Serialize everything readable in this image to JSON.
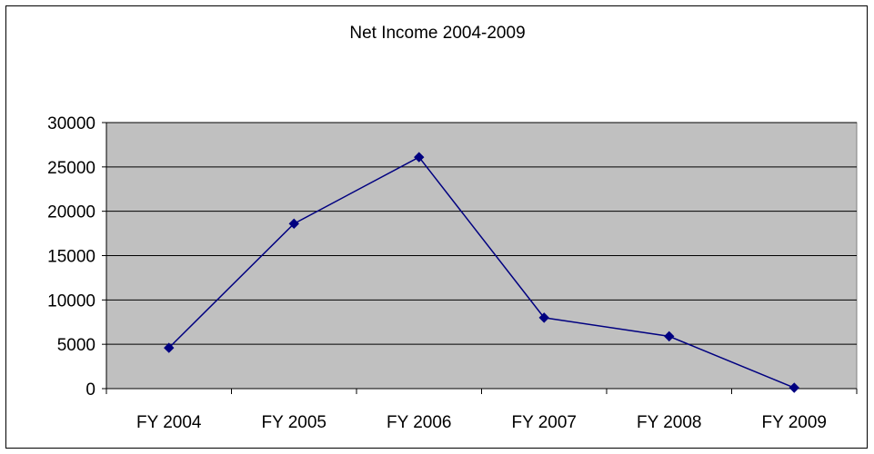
{
  "chart_data": {
    "type": "line",
    "title": "Net Income 2004-2009",
    "xlabel": "",
    "ylabel": "",
    "categories": [
      "FY 2004",
      "FY 2005",
      "FY 2006",
      "FY 2007",
      "FY 2008",
      "FY 2009"
    ],
    "series": [
      {
        "values": [
          4600,
          18600,
          26100,
          8000,
          5900,
          100
        ]
      }
    ],
    "ylim": [
      0,
      30000
    ],
    "yticks": [
      0,
      5000,
      10000,
      15000,
      20000,
      25000,
      30000
    ],
    "ytick_labels": [
      "0",
      "5000",
      "10000",
      "15000",
      "20000",
      "25000",
      "30000"
    ],
    "grid": true,
    "legend": "none",
    "colors": {
      "line": "#000080",
      "marker": "#000080",
      "plot_area": "#c0c0c0",
      "gridline": "#000000"
    }
  }
}
